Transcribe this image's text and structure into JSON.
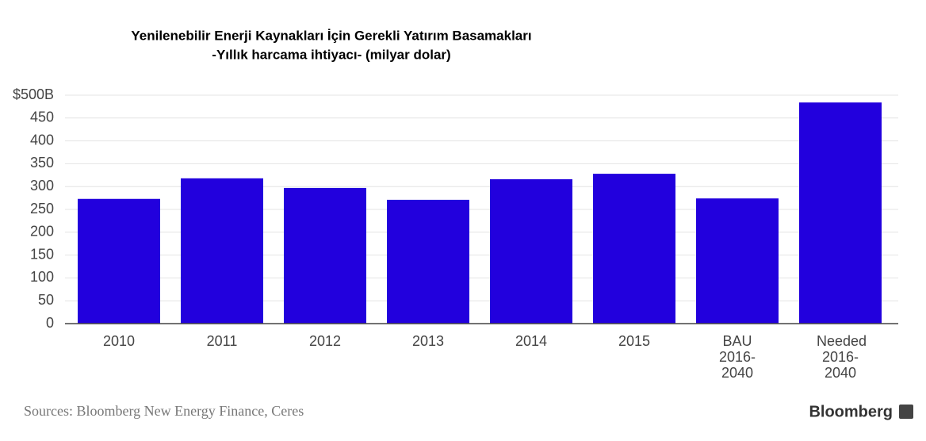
{
  "chart_data": {
    "type": "bar",
    "title": "Yenilenebilir Enerji Kaynakları İçin Gerekli Yatırım Basamakları",
    "subtitle": "-Yıllık harcama ihtiyacı- (milyar dolar)",
    "categories": [
      "2010",
      "2011",
      "2012",
      "2013",
      "2014",
      "2015",
      "BAU 2016-2040",
      "Needed 2016-2040"
    ],
    "values": [
      273,
      318,
      297,
      271,
      316,
      328,
      274,
      484
    ],
    "color": "#2200dd",
    "ylim": [
      0,
      500
    ],
    "yticks": [
      0,
      50,
      100,
      150,
      200,
      250,
      300,
      350,
      400,
      {
        "value": 500,
        "label": "$500B"
      },
      450
    ],
    "grid": true,
    "source": "Sources: Bloomberg New Energy Finance, Ceres",
    "brand": "Bloomberg"
  }
}
